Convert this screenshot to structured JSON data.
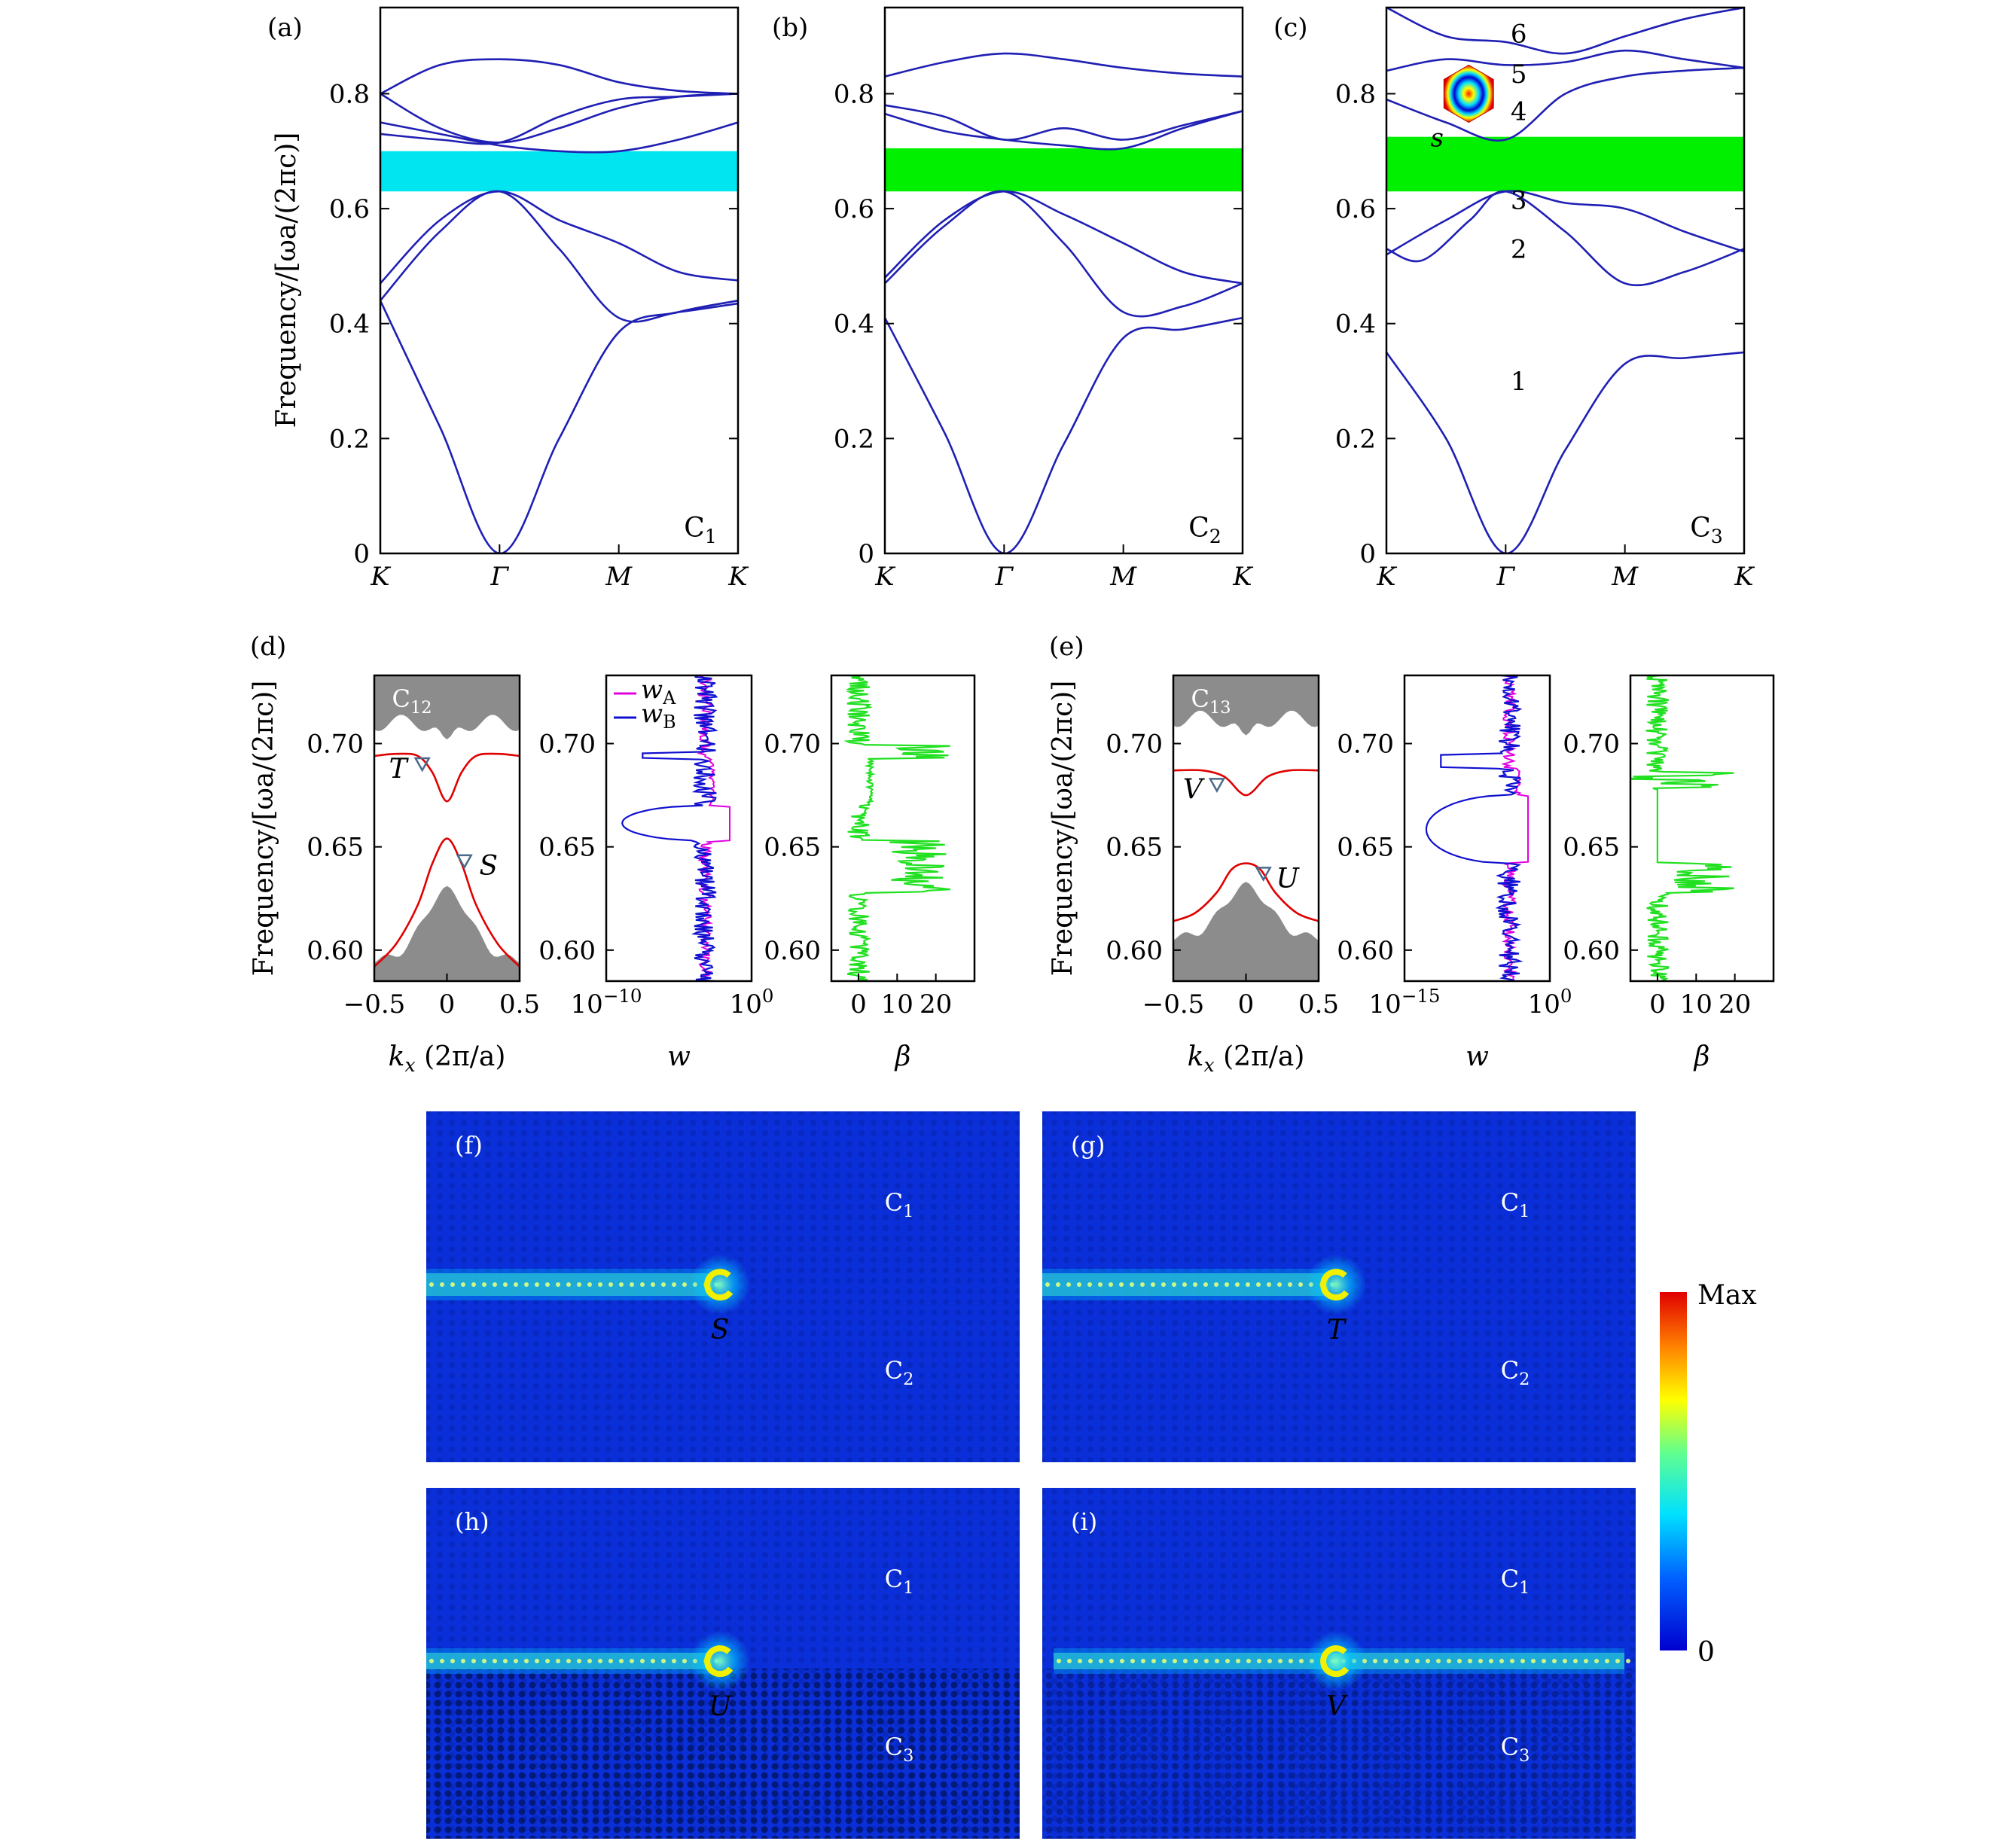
{
  "colors": {
    "band_line": "#1f1fb4",
    "gap_a": "#00e5f0",
    "gap_bc": "#00f000",
    "edge_red": "#e00000",
    "bulk_gray": "#8c8c8c",
    "w_A": "#e000e0",
    "w_B": "#1010d0",
    "beta": "#20e020",
    "field_bg": "#0a2fd8",
    "marker": "#f0f000"
  },
  "band_panels": [
    {
      "id": "a",
      "letter": "(a)",
      "corner_label": "C",
      "corner_sub": "1",
      "gap": [
        0.63,
        0.7
      ],
      "gap_color": "#00e5f0",
      "xticks": [
        "K",
        "Γ",
        "M",
        "K"
      ],
      "yticks": [
        "0",
        "0.2",
        "0.4",
        "0.6",
        "0.8"
      ],
      "ylim": [
        0,
        0.95
      ],
      "bands": [
        [
          [
            0,
            0.44
          ],
          [
            0.5,
            0.22
          ],
          [
            1,
            0
          ],
          [
            1.5,
            0.2
          ],
          [
            2,
            0.385
          ],
          [
            2.5,
            0.42
          ],
          [
            3,
            0.44
          ]
        ],
        [
          [
            0,
            0.44
          ],
          [
            0.5,
            0.56
          ],
          [
            1,
            0.63
          ],
          [
            1.5,
            0.53
          ],
          [
            2,
            0.41
          ],
          [
            2.5,
            0.42
          ],
          [
            3,
            0.435
          ]
        ],
        [
          [
            0,
            0.47
          ],
          [
            0.5,
            0.58
          ],
          [
            1,
            0.63
          ],
          [
            1.5,
            0.58
          ],
          [
            2,
            0.54
          ],
          [
            2.5,
            0.49
          ],
          [
            3,
            0.475
          ]
        ],
        [
          [
            0,
            0.75
          ],
          [
            0.5,
            0.73
          ],
          [
            1,
            0.71
          ],
          [
            1.5,
            0.7
          ],
          [
            2,
            0.7
          ],
          [
            2.5,
            0.72
          ],
          [
            3,
            0.75
          ]
        ],
        [
          [
            0,
            0.73
          ],
          [
            0.5,
            0.72
          ],
          [
            1,
            0.715
          ],
          [
            1.5,
            0.76
          ],
          [
            2,
            0.79
          ],
          [
            2.5,
            0.795
          ],
          [
            3,
            0.8
          ]
        ],
        [
          [
            0,
            0.8
          ],
          [
            0.5,
            0.74
          ],
          [
            1,
            0.715
          ],
          [
            1.5,
            0.74
          ],
          [
            2,
            0.775
          ],
          [
            2.5,
            0.795
          ],
          [
            3,
            0.8
          ]
        ],
        [
          [
            0,
            0.8
          ],
          [
            0.5,
            0.85
          ],
          [
            1,
            0.86
          ],
          [
            1.5,
            0.85
          ],
          [
            2,
            0.82
          ],
          [
            2.5,
            0.805
          ],
          [
            3,
            0.8
          ]
        ]
      ]
    },
    {
      "id": "b",
      "letter": "(b)",
      "corner_label": "C",
      "corner_sub": "2",
      "gap": [
        0.63,
        0.705
      ],
      "gap_color": "#00f000",
      "xticks": [
        "K",
        "Γ",
        "M",
        "K"
      ],
      "yticks": [
        "0",
        "0.2",
        "0.4",
        "0.6",
        "0.8"
      ],
      "ylim": [
        0,
        0.95
      ],
      "bands": [
        [
          [
            0,
            0.41
          ],
          [
            0.5,
            0.21
          ],
          [
            1,
            0
          ],
          [
            1.5,
            0.19
          ],
          [
            2,
            0.375
          ],
          [
            2.5,
            0.39
          ],
          [
            3,
            0.41
          ]
        ],
        [
          [
            0,
            0.47
          ],
          [
            0.5,
            0.57
          ],
          [
            1,
            0.63
          ],
          [
            1.5,
            0.54
          ],
          [
            2,
            0.42
          ],
          [
            2.5,
            0.43
          ],
          [
            3,
            0.47
          ]
        ],
        [
          [
            0,
            0.48
          ],
          [
            0.5,
            0.58
          ],
          [
            1,
            0.63
          ],
          [
            1.5,
            0.59
          ],
          [
            2,
            0.54
          ],
          [
            2.5,
            0.49
          ],
          [
            3,
            0.47
          ]
        ],
        [
          [
            0,
            0.765
          ],
          [
            0.5,
            0.735
          ],
          [
            1,
            0.72
          ],
          [
            1.5,
            0.71
          ],
          [
            2,
            0.705
          ],
          [
            2.5,
            0.74
          ],
          [
            3,
            0.77
          ]
        ],
        [
          [
            0,
            0.78
          ],
          [
            0.5,
            0.76
          ],
          [
            1,
            0.72
          ],
          [
            1.5,
            0.74
          ],
          [
            2,
            0.72
          ],
          [
            2.5,
            0.745
          ],
          [
            3,
            0.77
          ]
        ],
        [
          [
            0,
            0.83
          ],
          [
            0.5,
            0.855
          ],
          [
            1,
            0.87
          ],
          [
            1.5,
            0.86
          ],
          [
            2,
            0.845
          ],
          [
            2.5,
            0.835
          ],
          [
            3,
            0.83
          ]
        ]
      ]
    },
    {
      "id": "c",
      "letter": "(c)",
      "corner_label": "C",
      "corner_sub": "3",
      "gap": [
        0.63,
        0.725
      ],
      "gap_color": "#00f000",
      "xticks": [
        "K",
        "Γ",
        "M",
        "K"
      ],
      "yticks": [
        "0",
        "0.2",
        "0.4",
        "0.6",
        "0.8"
      ],
      "ylim": [
        0,
        0.95
      ],
      "band_labels": [
        "1",
        "2",
        "3",
        "4",
        "5",
        "6"
      ],
      "inset_label": "s",
      "bands": [
        [
          [
            0,
            0.35
          ],
          [
            0.5,
            0.2
          ],
          [
            1,
            0
          ],
          [
            1.5,
            0.18
          ],
          [
            2,
            0.33
          ],
          [
            2.5,
            0.34
          ],
          [
            3,
            0.35
          ]
        ],
        [
          [
            0,
            0.53
          ],
          [
            0.3,
            0.51
          ],
          [
            0.7,
            0.58
          ],
          [
            1,
            0.63
          ],
          [
            1.5,
            0.56
          ],
          [
            2,
            0.47
          ],
          [
            2.5,
            0.49
          ],
          [
            3,
            0.53
          ]
        ],
        [
          [
            0,
            0.52
          ],
          [
            0.5,
            0.58
          ],
          [
            1,
            0.63
          ],
          [
            1.5,
            0.61
          ],
          [
            2,
            0.6
          ],
          [
            2.5,
            0.56
          ],
          [
            3,
            0.525
          ]
        ],
        [
          [
            0,
            0.79
          ],
          [
            0.5,
            0.75
          ],
          [
            1,
            0.72
          ],
          [
            1.5,
            0.8
          ],
          [
            2,
            0.83
          ],
          [
            2.5,
            0.84
          ],
          [
            3,
            0.845
          ]
        ],
        [
          [
            0,
            0.84
          ],
          [
            0.5,
            0.86
          ],
          [
            1,
            0.85
          ],
          [
            1.5,
            0.855
          ],
          [
            2,
            0.875
          ],
          [
            2.5,
            0.86
          ],
          [
            3,
            0.845
          ]
        ],
        [
          [
            0,
            0.95
          ],
          [
            0.5,
            0.9
          ],
          [
            1,
            0.89
          ],
          [
            1.5,
            0.87
          ],
          [
            2,
            0.9
          ],
          [
            2.5,
            0.93
          ],
          [
            3,
            0.95
          ]
        ]
      ]
    }
  ],
  "edge_panels": [
    {
      "id": "d",
      "letter": "(d)",
      "corner_label": "C",
      "corner_sub": "12",
      "upper_point": "T",
      "lower_point": "S",
      "upper_band": [
        [
          -0.5,
          0.694
        ],
        [
          -0.35,
          0.695
        ],
        [
          -0.2,
          0.694
        ],
        [
          -0.1,
          0.686
        ],
        [
          0,
          0.672
        ],
        [
          0.1,
          0.686
        ],
        [
          0.2,
          0.694
        ],
        [
          0.35,
          0.695
        ],
        [
          0.5,
          0.694
        ]
      ],
      "lower_band": [
        [
          -0.5,
          0.592
        ],
        [
          -0.35,
          0.603
        ],
        [
          -0.2,
          0.622
        ],
        [
          -0.1,
          0.642
        ],
        [
          0,
          0.654
        ],
        [
          0.1,
          0.642
        ],
        [
          0.2,
          0.622
        ],
        [
          0.35,
          0.603
        ],
        [
          0.5,
          0.592
        ]
      ],
      "upper_point_k": -0.17,
      "upper_point_f": 0.69,
      "lower_point_k": 0.12,
      "lower_point_f": 0.643
    },
    {
      "id": "e",
      "letter": "(e)",
      "corner_label": "C",
      "corner_sub": "13",
      "upper_point": "V",
      "lower_point": "U",
      "upper_band": [
        [
          -0.5,
          0.687
        ],
        [
          -0.3,
          0.687
        ],
        [
          -0.15,
          0.684
        ],
        [
          -0.05,
          0.677
        ],
        [
          0,
          0.675
        ],
        [
          0.05,
          0.677
        ],
        [
          0.15,
          0.684
        ],
        [
          0.3,
          0.687
        ],
        [
          0.5,
          0.687
        ]
      ],
      "lower_band": [
        [
          -0.5,
          0.614
        ],
        [
          -0.35,
          0.618
        ],
        [
          -0.2,
          0.628
        ],
        [
          -0.1,
          0.639
        ],
        [
          0,
          0.642
        ],
        [
          0.1,
          0.639
        ],
        [
          0.2,
          0.628
        ],
        [
          0.35,
          0.618
        ],
        [
          0.5,
          0.614
        ]
      ],
      "upper_point_k": -0.2,
      "upper_point_f": 0.68,
      "lower_point_k": 0.12,
      "lower_point_f": 0.637
    }
  ],
  "edge_axes": {
    "ylabel": "Frequency/[ωa/(2πc)]",
    "yticks": [
      "0.60",
      "0.65",
      "0.70"
    ],
    "ylim": [
      0.585,
      0.733
    ],
    "kx_ticks": [
      "−0.5",
      "0",
      "0.5"
    ],
    "kx_label": "k",
    "kx_label_sub": "x",
    "kx_label_rest": " (2π/a)",
    "w_label": "w",
    "beta_label": "β",
    "w_ticks_d": [
      "10",
      "−10",
      "10",
      "0"
    ],
    "w_ticks_e": [
      "10",
      "−15",
      "10",
      "0"
    ],
    "beta_ticks": [
      "0",
      "10",
      "20"
    ],
    "legend": {
      "wA": "w",
      "wA_sub": "A",
      "wB": "w",
      "wB_sub": "B"
    }
  },
  "band_axes": {
    "ylabel": "Frequency/[ωa/(2πc)]"
  },
  "field_panels": [
    {
      "id": "f",
      "letter": "(f)",
      "top": "C",
      "top_sub": "1",
      "bottom": "C",
      "bottom_sub": "2",
      "point": "S",
      "mode": "narrow"
    },
    {
      "id": "g",
      "letter": "(g)",
      "top": "C",
      "top_sub": "1",
      "bottom": "C",
      "bottom_sub": "2",
      "point": "T",
      "mode": "narrow"
    },
    {
      "id": "h",
      "letter": "(h)",
      "top": "C",
      "top_sub": "1",
      "bottom": "C",
      "bottom_sub": "3",
      "point": "U",
      "mode": "dense"
    },
    {
      "id": "i",
      "letter": "(i)",
      "top": "C",
      "top_sub": "1",
      "bottom": "C",
      "bottom_sub": "3",
      "point": "V",
      "mode": "wide"
    }
  ],
  "colorbar": {
    "max": "Max",
    "min": "0"
  }
}
